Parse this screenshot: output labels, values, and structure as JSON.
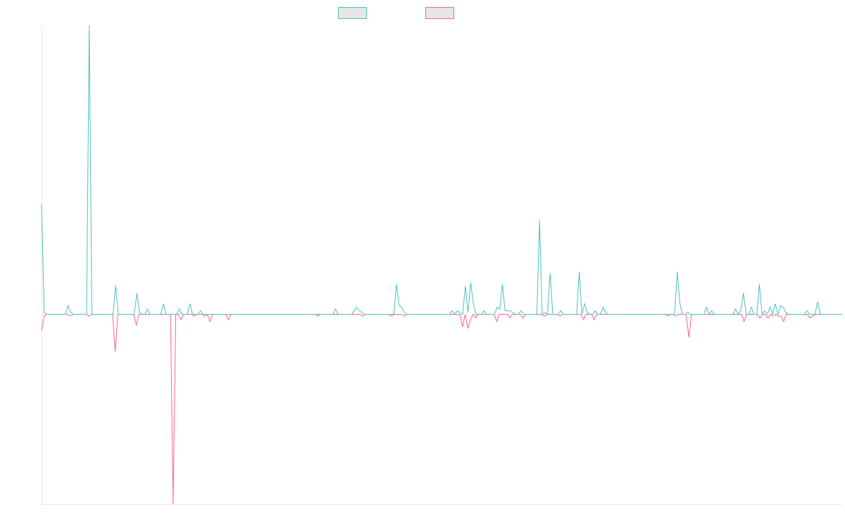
{
  "chart_data": {
    "type": "line",
    "title": "",
    "xlabel": "",
    "ylabel": "",
    "grid": false,
    "legend": "top-center",
    "ylim": [
      -107,
      163
    ],
    "series": [
      {
        "color": "#4bc0c0",
        "values": [
          62,
          1,
          0,
          0,
          0,
          0,
          0,
          0,
          0,
          0,
          5,
          1,
          0,
          0,
          0,
          0,
          0,
          0,
          163,
          0,
          0,
          0,
          0,
          0,
          0,
          0,
          0,
          0,
          16,
          0,
          0,
          0,
          0,
          0,
          0,
          0,
          12,
          1,
          0,
          0,
          3,
          0,
          0,
          0,
          0,
          0,
          6,
          0,
          0,
          0,
          0,
          0,
          3,
          0,
          0,
          0,
          6,
          0,
          0,
          0,
          2,
          0,
          0,
          0,
          0,
          0,
          0,
          0,
          0,
          0,
          0,
          0,
          0,
          0,
          0,
          0,
          0,
          0,
          0,
          0,
          0,
          0,
          0,
          0,
          0,
          0,
          0,
          0,
          0,
          0,
          0,
          0,
          0,
          0,
          0,
          0,
          0,
          0,
          0,
          0,
          0,
          0,
          0,
          0,
          0,
          0,
          0,
          0,
          0,
          0,
          0,
          3,
          0,
          0,
          0,
          0,
          0,
          0,
          2,
          4,
          2,
          1,
          0,
          0,
          0,
          0,
          0,
          0,
          0,
          0,
          0,
          0,
          0,
          0,
          17,
          5,
          4,
          1,
          0,
          0,
          0,
          0,
          0,
          0,
          0,
          0,
          0,
          0,
          0,
          0,
          0,
          0,
          0,
          0,
          0,
          2,
          0,
          2,
          1,
          0,
          16,
          1,
          18,
          6,
          0,
          0,
          0,
          2,
          0,
          0,
          0,
          0,
          4,
          3,
          17,
          2,
          2,
          2,
          1,
          0,
          0,
          2,
          0,
          0,
          0,
          0,
          0,
          0,
          53,
          0,
          1,
          0,
          23,
          0,
          0,
          0,
          2,
          0,
          0,
          0,
          0,
          0,
          0,
          24,
          0,
          6,
          1,
          0,
          0,
          2,
          0,
          0,
          4,
          1,
          0,
          0,
          0,
          0,
          0,
          0,
          0,
          0,
          0,
          0,
          0,
          0,
          0,
          0,
          0,
          0,
          0,
          0,
          0,
          0,
          0,
          0,
          0,
          0,
          0,
          0,
          24,
          6,
          0,
          0,
          1,
          0,
          0,
          0,
          0,
          0,
          0,
          4,
          0,
          2,
          0,
          0,
          0,
          0,
          0,
          0,
          0,
          0,
          3,
          0,
          2,
          12,
          0,
          0,
          4,
          0,
          0,
          17,
          0,
          2,
          0,
          4,
          0,
          6,
          0,
          5,
          4,
          1,
          0,
          0,
          0,
          0,
          0,
          0,
          0,
          2,
          0,
          0,
          0,
          7,
          0,
          0,
          0,
          0,
          0,
          0,
          0,
          0,
          0
        ]
      },
      {
        "color": "#ff6384",
        "values": [
          -9,
          -1,
          0,
          0,
          0,
          0,
          0,
          0,
          0,
          0,
          0,
          -1,
          0,
          0,
          0,
          0,
          0,
          0,
          -1,
          0,
          0,
          0,
          0,
          0,
          0,
          0,
          0,
          0,
          -21,
          0,
          0,
          0,
          0,
          0,
          0,
          0,
          -6,
          0,
          0,
          0,
          0,
          0,
          0,
          0,
          0,
          0,
          0,
          0,
          0,
          0,
          -107,
          0,
          0,
          -3,
          0,
          0,
          0,
          0,
          -1,
          0,
          0,
          0,
          -1,
          0,
          -4,
          0,
          0,
          0,
          0,
          0,
          0,
          -3,
          0,
          0,
          0,
          0,
          0,
          0,
          0,
          0,
          0,
          0,
          0,
          0,
          0,
          0,
          0,
          0,
          0,
          0,
          0,
          0,
          0,
          0,
          0,
          0,
          0,
          0,
          0,
          0,
          0,
          0,
          0,
          0,
          0,
          -1,
          0,
          0,
          0,
          0,
          0,
          0,
          0,
          0,
          0,
          0,
          0,
          0,
          0,
          0,
          0,
          0,
          -1,
          0,
          0,
          0,
          0,
          0,
          0,
          0,
          0,
          0,
          0,
          -1,
          0,
          0,
          0,
          0,
          -1,
          0,
          0,
          0,
          0,
          0,
          0,
          0,
          0,
          0,
          0,
          0,
          0,
          0,
          0,
          0,
          0,
          0,
          0,
          0,
          0,
          0,
          -7,
          0,
          -8,
          -3,
          0,
          -2,
          0,
          0,
          0,
          0,
          0,
          0,
          0,
          -4,
          0,
          0,
          0,
          0,
          -2,
          0,
          0,
          0,
          0,
          -2,
          0,
          0,
          0,
          0,
          0,
          0,
          0,
          -1,
          0,
          0,
          0,
          0,
          0,
          -1,
          0,
          0,
          0,
          0,
          0,
          0,
          0,
          0,
          -3,
          0,
          0,
          0,
          -3,
          0,
          0,
          0,
          0,
          0,
          0,
          0,
          0,
          0,
          0,
          0,
          0,
          0,
          0,
          0,
          0,
          0,
          0,
          0,
          0,
          0,
          0,
          0,
          0,
          0,
          0,
          0,
          -1,
          0,
          0,
          -1,
          0,
          0,
          0,
          0,
          -13,
          0,
          0,
          0,
          0,
          0,
          0,
          0,
          0,
          0,
          0,
          0,
          0,
          0,
          0,
          0,
          0,
          0,
          0,
          0,
          0,
          -4,
          0,
          0,
          0,
          0,
          0,
          -2,
          0,
          0,
          -2,
          0,
          -1,
          0,
          -1,
          -1,
          -4,
          0,
          0,
          0,
          0,
          0,
          0,
          0,
          0,
          0,
          -2,
          -1,
          0,
          0,
          0,
          0,
          0,
          0,
          0,
          0,
          0,
          0,
          0
        ]
      }
    ]
  }
}
